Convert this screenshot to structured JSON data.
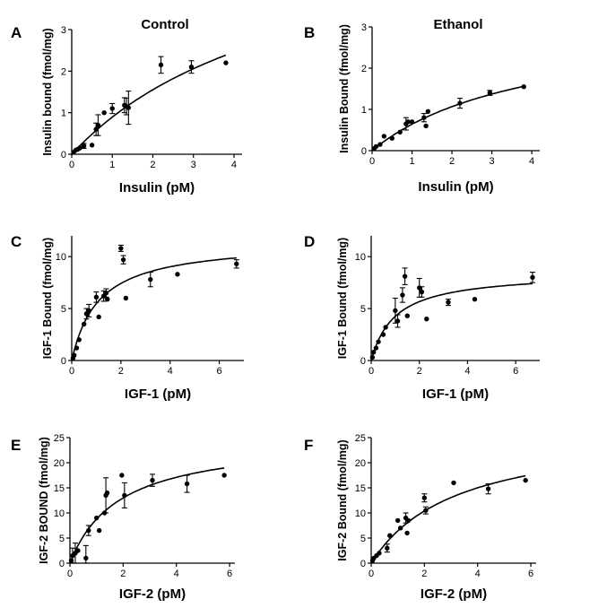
{
  "groups": [
    "Control",
    "Ethanol"
  ],
  "chart_data": [
    {
      "panel": "A",
      "type": "scatter",
      "fit": "saturation",
      "xlabel": "Insulin (pM)",
      "ylabel": "Insulin bound (fmol/mg)",
      "xlim": [
        0,
        4.2
      ],
      "ylim": [
        0,
        3
      ],
      "xticks": [
        0,
        1,
        2,
        3,
        4
      ],
      "yticks": [
        0,
        1,
        2,
        3
      ],
      "bmax": 5.9,
      "kd": 5.6,
      "points": [
        {
          "x": 0.05,
          "y": 0.05
        },
        {
          "x": 0.1,
          "y": 0.1
        },
        {
          "x": 0.15,
          "y": 0.12
        },
        {
          "x": 0.2,
          "y": 0.15
        },
        {
          "x": 0.3,
          "y": 0.2,
          "err": 0.06
        },
        {
          "x": 0.5,
          "y": 0.22
        },
        {
          "x": 0.6,
          "y": 0.6,
          "err": 0.15
        },
        {
          "x": 0.65,
          "y": 0.7,
          "err": 0.25
        },
        {
          "x": 0.8,
          "y": 1.0
        },
        {
          "x": 1.0,
          "y": 1.1,
          "err": 0.12
        },
        {
          "x": 1.3,
          "y": 1.18,
          "err": 0.18
        },
        {
          "x": 1.35,
          "y": 1.15,
          "err": 0.2
        },
        {
          "x": 1.4,
          "y": 1.12,
          "err": 0.4
        },
        {
          "x": 2.2,
          "y": 2.15,
          "err": 0.2
        },
        {
          "x": 2.95,
          "y": 2.1,
          "err": 0.15
        },
        {
          "x": 3.8,
          "y": 2.2
        }
      ]
    },
    {
      "panel": "B",
      "type": "scatter",
      "fit": "saturation",
      "xlabel": "Insulin (pM)",
      "ylabel": "Insulin Bound (fmol/mg)",
      "xlim": [
        0,
        4.2
      ],
      "ylim": [
        0,
        3
      ],
      "xticks": [
        0,
        1,
        2,
        3,
        4
      ],
      "yticks": [
        0,
        1,
        2,
        3
      ],
      "bmax": 3.2,
      "kd": 4.0,
      "points": [
        {
          "x": 0.05,
          "y": 0.05
        },
        {
          "x": 0.1,
          "y": 0.1
        },
        {
          "x": 0.2,
          "y": 0.15
        },
        {
          "x": 0.3,
          "y": 0.35
        },
        {
          "x": 0.5,
          "y": 0.3
        },
        {
          "x": 0.7,
          "y": 0.45
        },
        {
          "x": 0.85,
          "y": 0.65,
          "err": 0.15
        },
        {
          "x": 0.9,
          "y": 0.7
        },
        {
          "x": 1.0,
          "y": 0.7
        },
        {
          "x": 1.3,
          "y": 0.8,
          "err": 0.1
        },
        {
          "x": 1.35,
          "y": 0.6
        },
        {
          "x": 1.4,
          "y": 0.95
        },
        {
          "x": 2.2,
          "y": 1.15,
          "err": 0.12
        },
        {
          "x": 2.95,
          "y": 1.4,
          "err": 0.06
        },
        {
          "x": 3.8,
          "y": 1.55
        }
      ]
    },
    {
      "panel": "C",
      "type": "scatter",
      "fit": "saturation",
      "xlabel": "IGF-1 (pM)",
      "ylabel": "IGF-1 Bound (fmol/mg)",
      "xlim": [
        0,
        7
      ],
      "ylim": [
        0,
        12
      ],
      "xticks": [
        0,
        2,
        4,
        6
      ],
      "yticks": [
        0,
        5,
        10
      ],
      "bmax": 11.5,
      "kd": 1.1,
      "points": [
        {
          "x": 0.05,
          "y": 0.2
        },
        {
          "x": 0.1,
          "y": 0.5
        },
        {
          "x": 0.2,
          "y": 1.2
        },
        {
          "x": 0.3,
          "y": 2.0
        },
        {
          "x": 0.5,
          "y": 3.5
        },
        {
          "x": 0.6,
          "y": 4.5,
          "err": 0.5
        },
        {
          "x": 0.7,
          "y": 4.8,
          "err": 0.6
        },
        {
          "x": 1.0,
          "y": 6.1,
          "err": 0.5
        },
        {
          "x": 1.1,
          "y": 4.2
        },
        {
          "x": 1.3,
          "y": 6.2,
          "err": 0.5
        },
        {
          "x": 1.4,
          "y": 6.5,
          "err": 0.4
        },
        {
          "x": 1.45,
          "y": 5.9
        },
        {
          "x": 2.0,
          "y": 10.8,
          "err": 0.3
        },
        {
          "x": 2.1,
          "y": 9.7,
          "err": 0.4
        },
        {
          "x": 2.2,
          "y": 6.0
        },
        {
          "x": 3.2,
          "y": 7.8,
          "err": 0.7
        },
        {
          "x": 4.3,
          "y": 8.3
        },
        {
          "x": 6.7,
          "y": 9.3,
          "err": 0.4
        }
      ]
    },
    {
      "panel": "D",
      "type": "scatter",
      "fit": "saturation",
      "xlabel": "IGF-1 (pM)",
      "ylabel": "IGF-1 Bound (fmol/mg)",
      "xlim": [
        0,
        7
      ],
      "ylim": [
        0,
        12
      ],
      "xticks": [
        0,
        2,
        4,
        6
      ],
      "yticks": [
        0,
        5,
        10
      ],
      "bmax": 8.5,
      "kd": 1.0,
      "points": [
        {
          "x": 0.05,
          "y": 0.3
        },
        {
          "x": 0.1,
          "y": 0.8
        },
        {
          "x": 0.2,
          "y": 1.2
        },
        {
          "x": 0.3,
          "y": 1.8
        },
        {
          "x": 0.5,
          "y": 2.5
        },
        {
          "x": 0.6,
          "y": 3.2
        },
        {
          "x": 1.0,
          "y": 4.8,
          "err": 1.2
        },
        {
          "x": 1.1,
          "y": 3.8,
          "err": 0.6
        },
        {
          "x": 1.3,
          "y": 6.3,
          "err": 0.7
        },
        {
          "x": 1.4,
          "y": 8.1,
          "err": 0.8
        },
        {
          "x": 1.5,
          "y": 4.3
        },
        {
          "x": 2.0,
          "y": 7.0,
          "err": 0.9
        },
        {
          "x": 2.1,
          "y": 6.6,
          "err": 0.5
        },
        {
          "x": 2.3,
          "y": 4.0
        },
        {
          "x": 3.2,
          "y": 5.6,
          "err": 0.3
        },
        {
          "x": 4.3,
          "y": 5.9
        },
        {
          "x": 6.7,
          "y": 8.0,
          "err": 0.5
        }
      ]
    },
    {
      "panel": "E",
      "type": "scatter",
      "fit": "saturation",
      "xlabel": "IGF-2 (pM)",
      "ylabel": "IGF-2 BOUND (fmol/mg)",
      "xlim": [
        0,
        6.2
      ],
      "ylim": [
        0,
        25
      ],
      "xticks": [
        0,
        2,
        4,
        6
      ],
      "yticks": [
        0,
        5,
        10,
        15,
        20,
        25
      ],
      "bmax": 25.0,
      "kd": 1.85,
      "points": [
        {
          "x": 0.05,
          "y": 0.5
        },
        {
          "x": 0.1,
          "y": 1.5,
          "err": 1.5
        },
        {
          "x": 0.2,
          "y": 2.0,
          "err": 2.0
        },
        {
          "x": 0.3,
          "y": 2.5
        },
        {
          "x": 0.6,
          "y": 1.0,
          "err": 2.5
        },
        {
          "x": 0.7,
          "y": 6.5,
          "err": 1.0
        },
        {
          "x": 1.0,
          "y": 9.0
        },
        {
          "x": 1.1,
          "y": 6.5
        },
        {
          "x": 1.3,
          "y": 10.0
        },
        {
          "x": 1.35,
          "y": 13.5,
          "err": 3.5
        },
        {
          "x": 1.4,
          "y": 14.0
        },
        {
          "x": 1.95,
          "y": 17.5
        },
        {
          "x": 2.05,
          "y": 13.5,
          "err": 2.5
        },
        {
          "x": 3.1,
          "y": 16.5,
          "err": 1.2
        },
        {
          "x": 4.4,
          "y": 15.8,
          "err": 1.7
        },
        {
          "x": 5.8,
          "y": 17.5
        }
      ]
    },
    {
      "panel": "F",
      "type": "scatter",
      "fit": "saturation",
      "xlabel": "IGF-2 (pM)",
      "ylabel": "IGF-2 Bound (fmol/mg)",
      "xlim": [
        0,
        6.2
      ],
      "ylim": [
        0,
        25
      ],
      "xticks": [
        0,
        2,
        4,
        6
      ],
      "yticks": [
        0,
        5,
        10,
        15,
        20,
        25
      ],
      "bmax": 27.0,
      "kd": 3.2,
      "points": [
        {
          "x": 0.05,
          "y": 0.5
        },
        {
          "x": 0.1,
          "y": 1.0
        },
        {
          "x": 0.2,
          "y": 1.5
        },
        {
          "x": 0.3,
          "y": 2.0
        },
        {
          "x": 0.6,
          "y": 3.0,
          "err": 0.8
        },
        {
          "x": 0.7,
          "y": 5.5
        },
        {
          "x": 1.0,
          "y": 8.5
        },
        {
          "x": 1.1,
          "y": 7.0
        },
        {
          "x": 1.3,
          "y": 9.0,
          "err": 1.0
        },
        {
          "x": 1.35,
          "y": 6.0
        },
        {
          "x": 1.4,
          "y": 8.5
        },
        {
          "x": 2.0,
          "y": 13.0,
          "err": 0.8
        },
        {
          "x": 2.05,
          "y": 10.5,
          "err": 0.7
        },
        {
          "x": 3.1,
          "y": 16.0
        },
        {
          "x": 4.4,
          "y": 14.8,
          "err": 1.0
        },
        {
          "x": 5.8,
          "y": 16.5
        }
      ]
    }
  ]
}
